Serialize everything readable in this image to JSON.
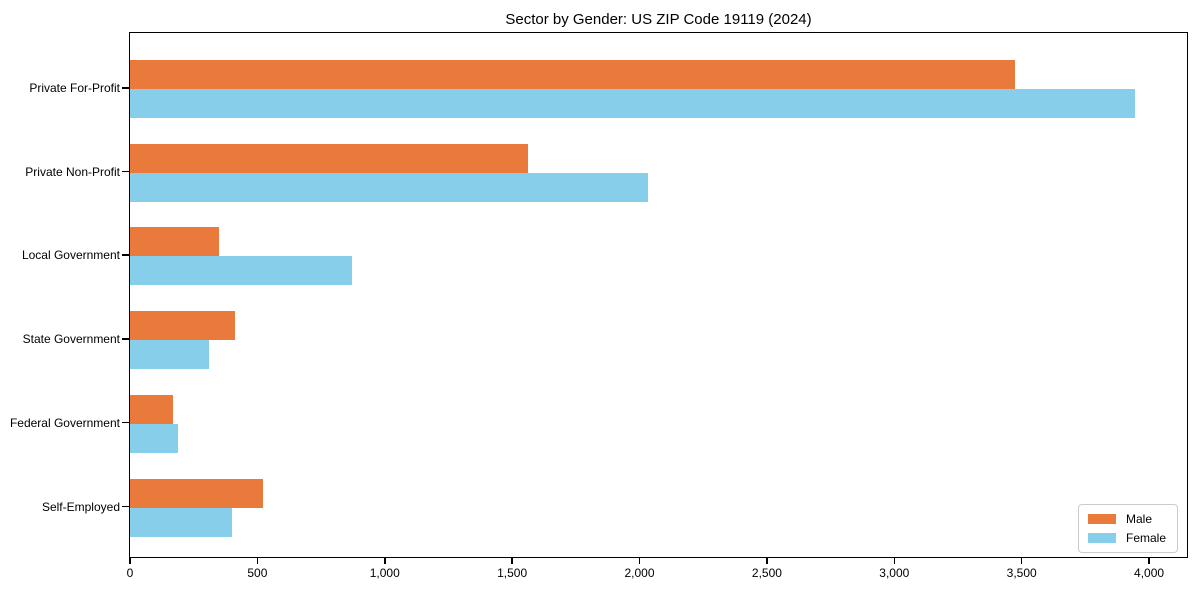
{
  "title": "Sector by Gender: US ZIP Code 19119 (2024)",
  "chart_data": {
    "type": "bar",
    "orientation": "horizontal",
    "title": "Sector by Gender: US ZIP Code 19119 (2024)",
    "categories": [
      "Private For-Profit",
      "Private Non-Profit",
      "Local Government",
      "State Government",
      "Federal Government",
      "Self-Employed"
    ],
    "series": [
      {
        "name": "Male",
        "color": "#E97A3C",
        "values": [
          3470,
          1560,
          350,
          410,
          170,
          520
        ]
      },
      {
        "name": "Female",
        "color": "#87CEEB",
        "values": [
          3940,
          2030,
          870,
          310,
          190,
          400
        ]
      }
    ],
    "xlabel": "",
    "ylabel": "",
    "xlim": [
      0,
      4145
    ],
    "xticks": [
      0,
      500,
      1000,
      1500,
      2000,
      2500,
      3000,
      3500,
      4000
    ],
    "xtick_labels": [
      "0",
      "500",
      "1,000",
      "1,500",
      "2,000",
      "2,500",
      "3,000",
      "3,500",
      "4,000"
    ],
    "grid": false,
    "legend": {
      "position": "lower right",
      "entries": [
        "Male",
        "Female"
      ]
    }
  }
}
